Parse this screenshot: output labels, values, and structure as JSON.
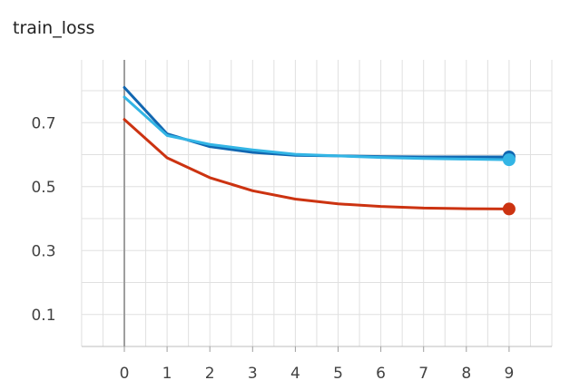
{
  "chart_data": {
    "type": "line",
    "title": "train_loss",
    "xlabel": "",
    "ylabel": "",
    "x": [
      0,
      1,
      2,
      3,
      4,
      5,
      6,
      7,
      8,
      9
    ],
    "xlim": [
      -1,
      10
    ],
    "ylim": [
      0.0,
      0.9
    ],
    "x_ticks": [
      "0",
      "1",
      "2",
      "3",
      "4",
      "5",
      "6",
      "7",
      "8",
      "9"
    ],
    "y_ticks": [
      "0.1",
      "0.3",
      "0.5",
      "0.7"
    ],
    "grid": true,
    "series": [
      {
        "color": "#1167b1",
        "values": [
          0.81,
          0.665,
          0.625,
          0.607,
          0.598,
          0.596,
          0.594,
          0.593,
          0.593,
          0.593
        ]
      },
      {
        "color": "#33b5e5",
        "values": [
          0.78,
          0.66,
          0.632,
          0.615,
          0.601,
          0.596,
          0.591,
          0.588,
          0.586,
          0.584
        ]
      },
      {
        "color": "#cc3311",
        "values": [
          0.71,
          0.59,
          0.528,
          0.487,
          0.461,
          0.446,
          0.438,
          0.433,
          0.431,
          0.43
        ]
      }
    ]
  }
}
